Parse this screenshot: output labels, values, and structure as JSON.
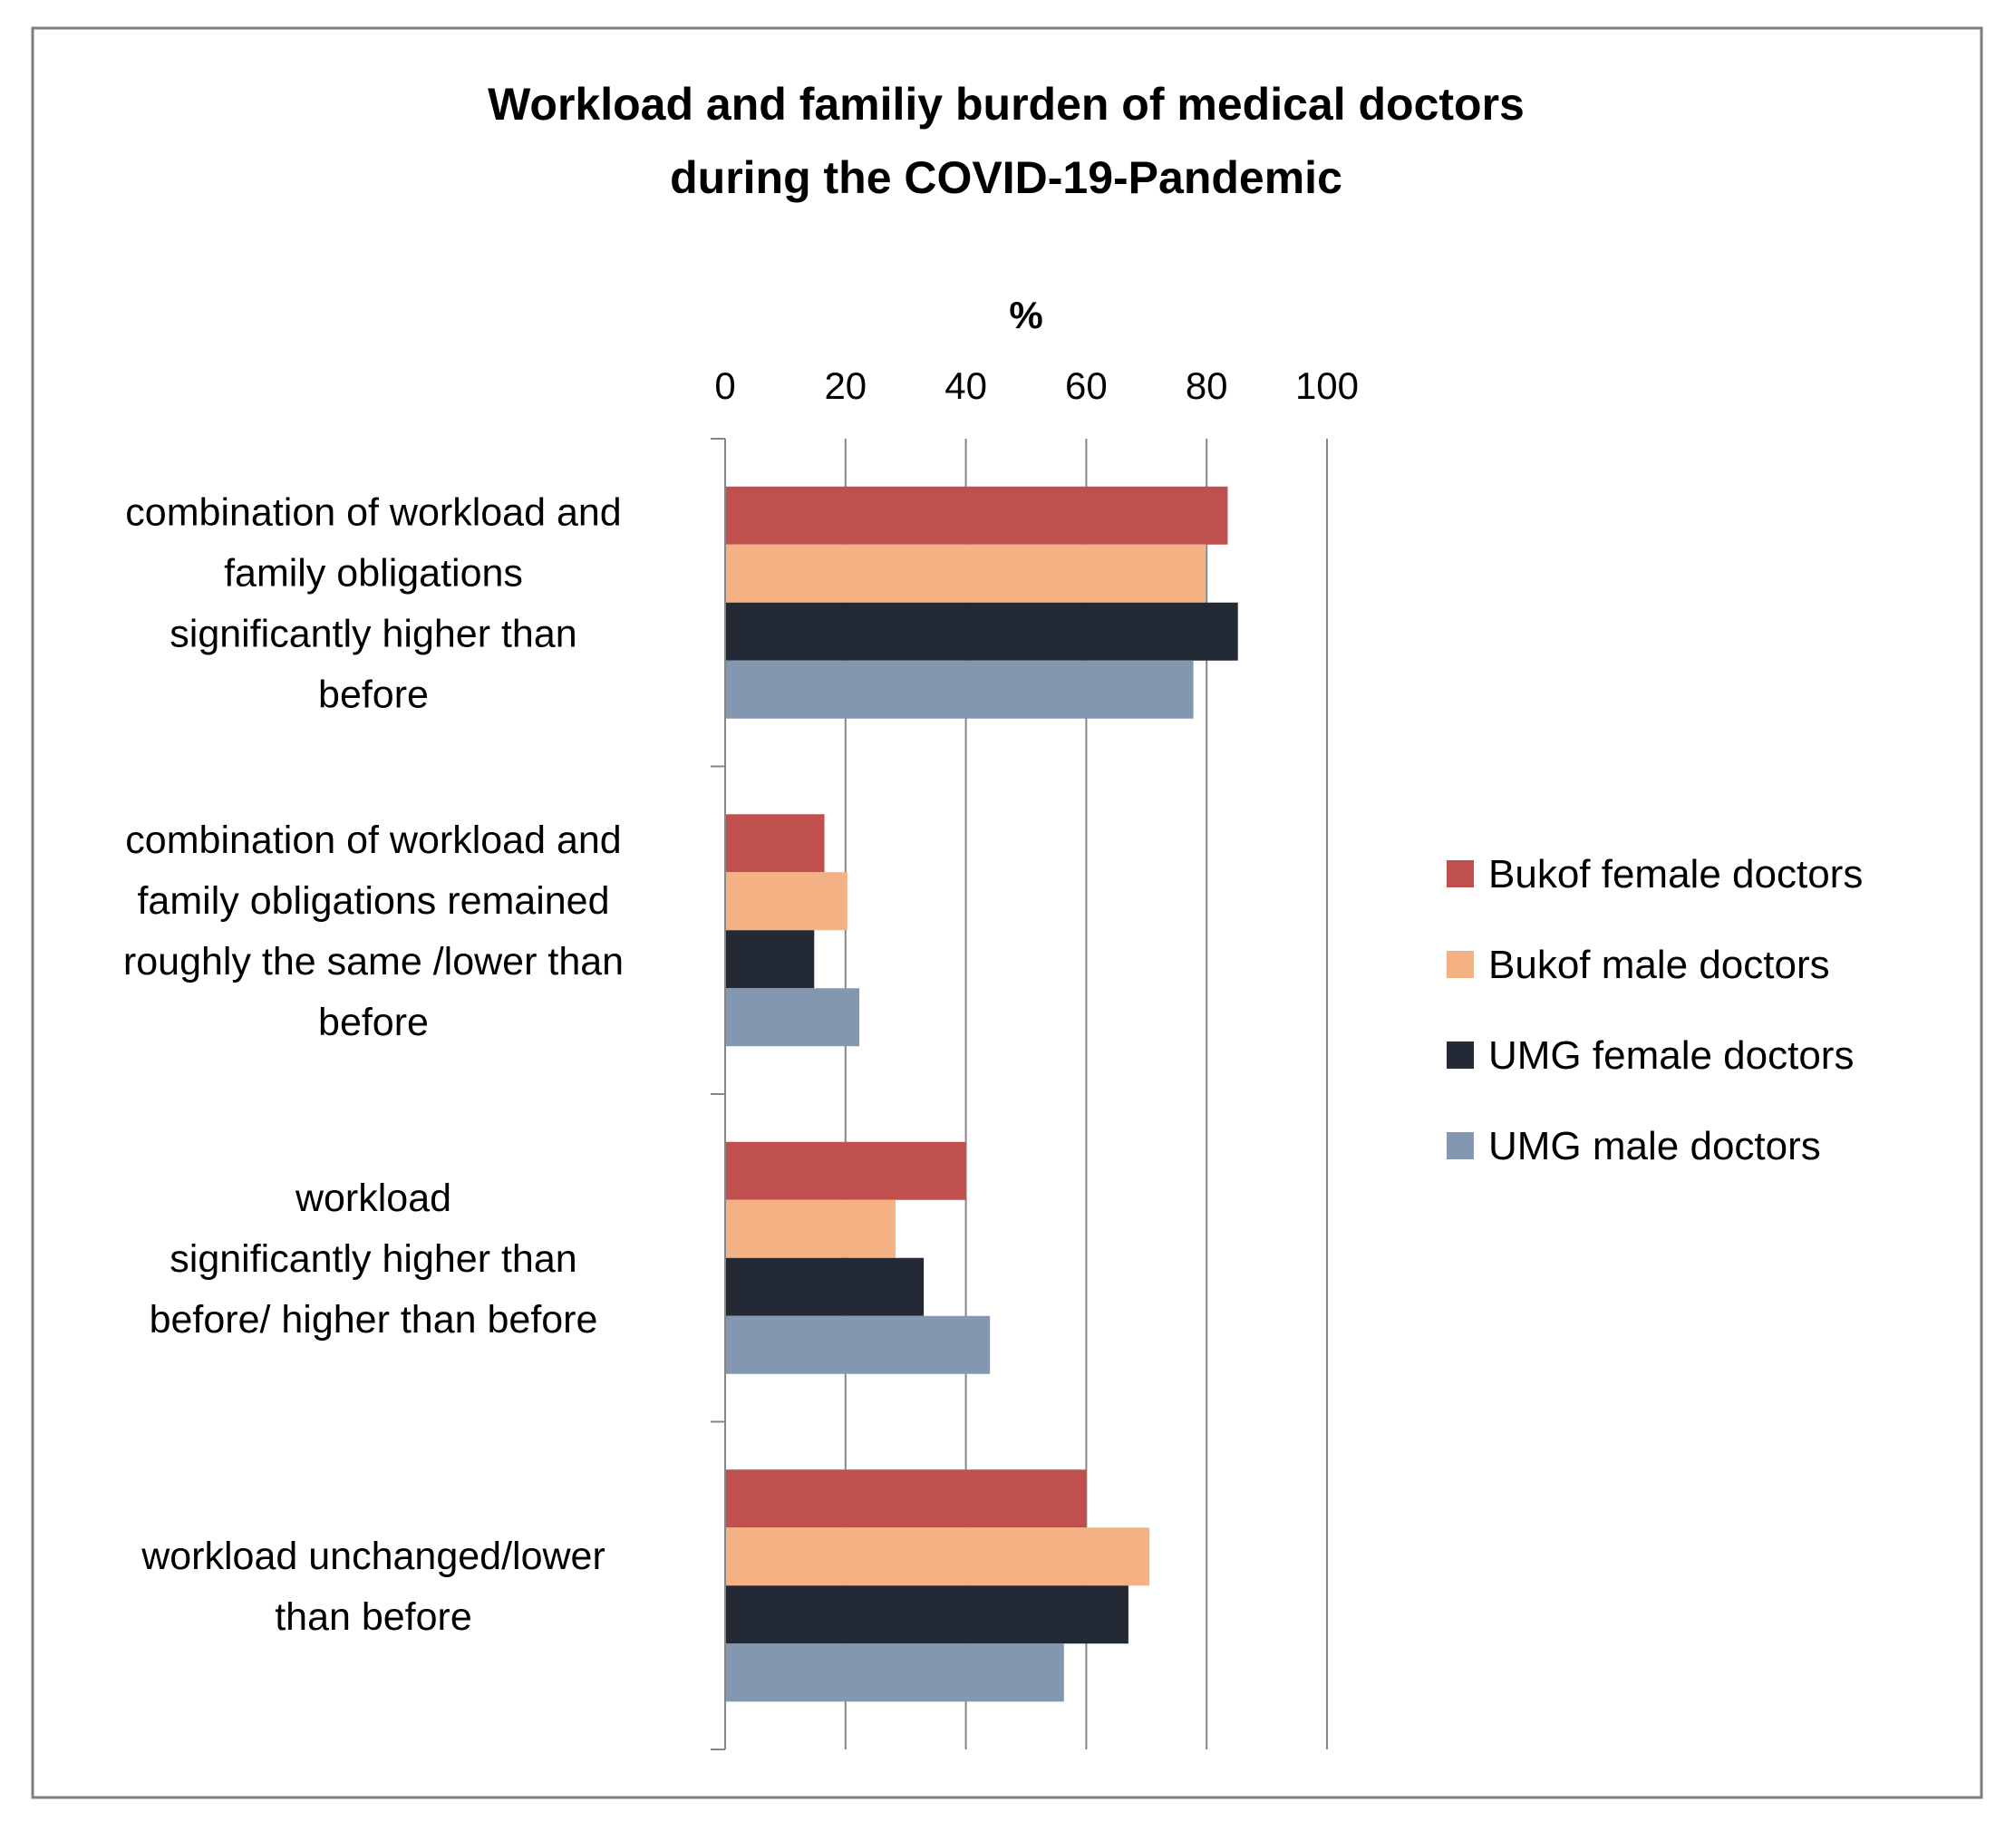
{
  "chart_data": {
    "type": "bar",
    "orientation": "horizontal",
    "title_lines": [
      "Workload and familiy burden of medical doctors",
      "during the COVID-19-Pandemic"
    ],
    "xlabel": "%",
    "xlim": [
      0,
      100
    ],
    "xticks": [
      "0",
      "20",
      "40",
      "60",
      "80",
      "100"
    ],
    "grid": true,
    "legend_position": "right",
    "categories": [
      [
        "combination of workload and",
        "family obligations",
        "significantly higher than",
        "before"
      ],
      [
        "combination of workload and",
        "family obligations remained",
        "roughly the same /lower than",
        "before"
      ],
      [
        "workload",
        "significantly higher than",
        "before/ higher than before"
      ],
      [
        "workload unchanged/lower",
        "than before"
      ]
    ],
    "series": [
      {
        "name": "Bukof female doctors",
        "color": "#c0504d",
        "values": [
          83.5,
          16.5,
          40,
          60
        ]
      },
      {
        "name": "Bukof male doctors",
        "color": "#f4b183",
        "values": [
          79.8,
          20.3,
          28.3,
          70.5
        ]
      },
      {
        "name": "UMG female doctors",
        "color": "#232a36",
        "values": [
          85.2,
          14.8,
          33,
          67
        ]
      },
      {
        "name": "UMG male doctors",
        "color": "#8497b0",
        "values": [
          77.8,
          22.3,
          44,
          56.3
        ]
      }
    ]
  }
}
